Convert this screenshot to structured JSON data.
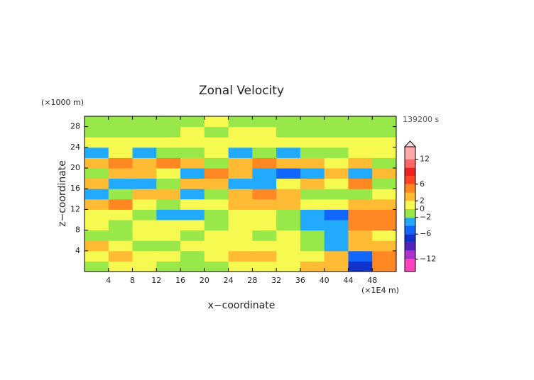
{
  "chart_data": {
    "type": "heatmap",
    "title": "Zonal Velocity",
    "y_unit_label": "(×1000 m)",
    "time_label": "139200 s",
    "x_label": "x−coordinate",
    "y_label": "z−coordinate",
    "x_unit_label": "(×1E4 m)",
    "x": [
      0,
      4,
      8,
      12,
      16,
      20,
      24,
      28,
      32,
      36,
      40,
      44,
      48,
      52
    ],
    "y": [
      0,
      2,
      4,
      6,
      8,
      10,
      12,
      14,
      16,
      18,
      20,
      22,
      24,
      26,
      28,
      30
    ],
    "xlim": [
      0,
      52
    ],
    "ylim": [
      0,
      30
    ],
    "xticks": [
      4,
      8,
      12,
      16,
      20,
      24,
      28,
      32,
      36,
      40,
      44,
      48
    ],
    "yticks": [
      4,
      8,
      12,
      16,
      20,
      24,
      28
    ],
    "values": [
      [
        -1,
        1,
        1,
        -1,
        -1,
        -1,
        1,
        1,
        1,
        3,
        3,
        -7,
        5
      ],
      [
        1,
        3,
        1,
        1,
        -1,
        1,
        3,
        3,
        1,
        1,
        3,
        -5,
        5
      ],
      [
        3,
        1,
        -1,
        -1,
        1,
        1,
        1,
        1,
        1,
        -1,
        -3,
        3,
        3
      ],
      [
        -1,
        -1,
        1,
        1,
        -1,
        1,
        1,
        -1,
        1,
        -1,
        -3,
        3,
        1
      ],
      [
        1,
        -1,
        1,
        1,
        1,
        -1,
        1,
        1,
        -1,
        -3,
        -3,
        5,
        5
      ],
      [
        1,
        1,
        -1,
        -3,
        -3,
        -1,
        1,
        1,
        -1,
        -3,
        -5,
        5,
        5
      ],
      [
        3,
        5,
        1,
        -1,
        1,
        1,
        3,
        3,
        3,
        1,
        1,
        3,
        3
      ],
      [
        -3,
        -1,
        3,
        3,
        -3,
        -1,
        3,
        5,
        3,
        -1,
        -1,
        -1,
        1
      ],
      [
        3,
        -3,
        -3,
        -1,
        3,
        3,
        -3,
        -3,
        1,
        3,
        1,
        5,
        -1
      ],
      [
        -1,
        3,
        3,
        1,
        -3,
        5,
        3,
        -3,
        -5,
        -3,
        3,
        -3,
        3
      ],
      [
        3,
        5,
        3,
        5,
        3,
        -1,
        3,
        5,
        3,
        3,
        1,
        3,
        -1
      ],
      [
        -3,
        1,
        -3,
        -1,
        -1,
        1,
        -3,
        -1,
        -3,
        -1,
        -1,
        1,
        1
      ],
      [
        1,
        1,
        1,
        1,
        1,
        1,
        1,
        1,
        1,
        1,
        1,
        1,
        1
      ],
      [
        -1,
        -1,
        -1,
        -1,
        1,
        -1,
        1,
        1,
        -1,
        -1,
        -1,
        -1,
        -1
      ],
      [
        -1,
        -1,
        -1,
        -1,
        -1,
        1,
        -1,
        -1,
        -1,
        -1,
        -1,
        -1,
        -1
      ]
    ],
    "colorbar": {
      "levels": [
        -15,
        -12,
        -10,
        -8,
        -6,
        -4,
        -2,
        0,
        2,
        4,
        6,
        8,
        10,
        12,
        15
      ],
      "colors": [
        "#ff44bb",
        "#aa33cc",
        "#5522bb",
        "#1133cc",
        "#1166ff",
        "#22aaff",
        "#99e84a",
        "#f6f94f",
        "#ffbb33",
        "#ff8822",
        "#ff4422",
        "#ee2222",
        "#ff6666",
        "#ffaaaa"
      ],
      "ticks": [
        12,
        6,
        2,
        0,
        {
          "value": -2,
          "label": "−2"
        },
        {
          "value": -6,
          "label": "−6"
        },
        {
          "value": -12,
          "label": "−12"
        }
      ]
    }
  }
}
